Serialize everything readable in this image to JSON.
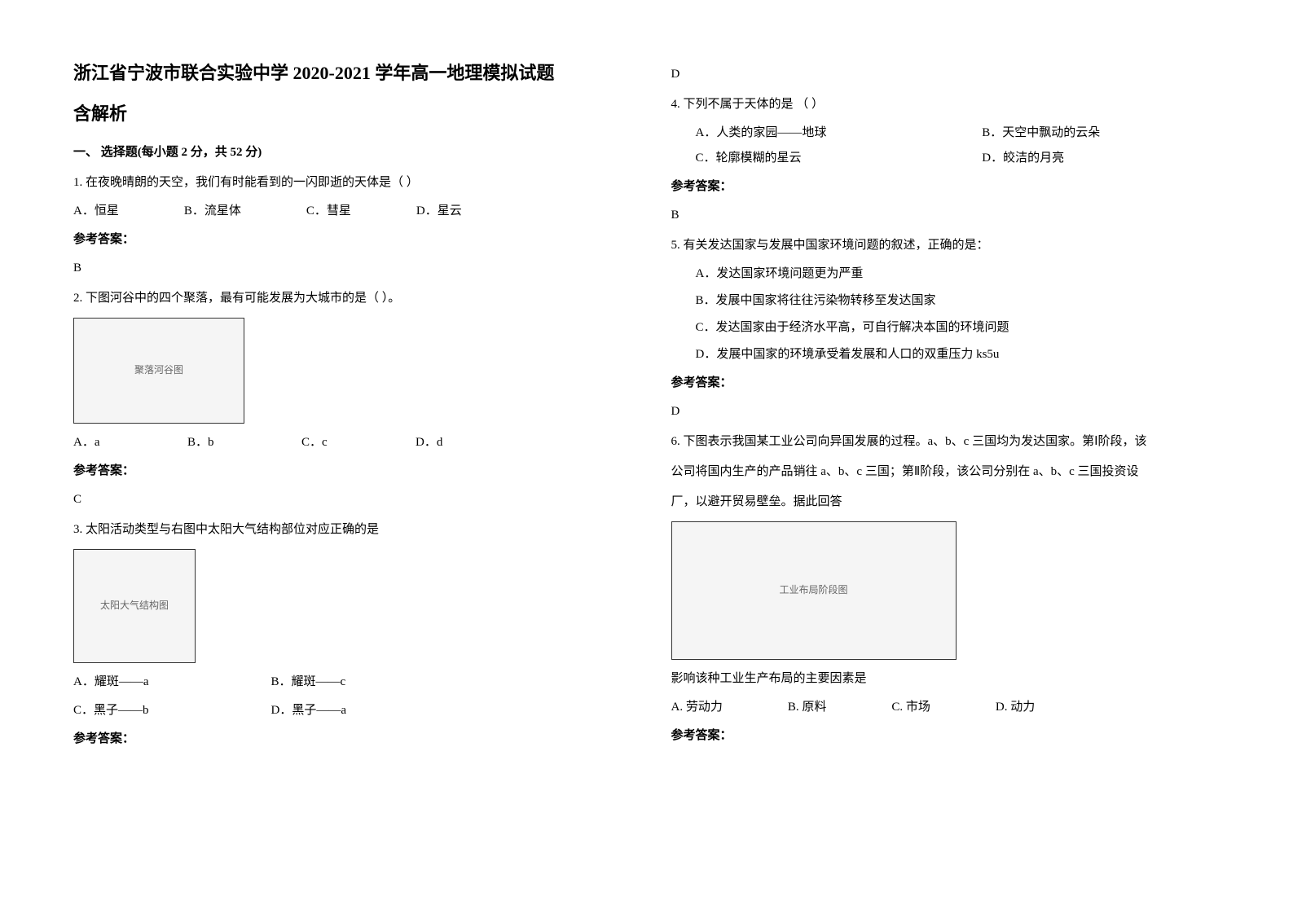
{
  "header": {
    "title_line1": "浙江省宁波市联合实验中学 2020-2021 学年高一地理模拟试题",
    "title_line2": "含解析"
  },
  "section1": {
    "header": "一、 选择题(每小题 2 分，共 52 分)"
  },
  "q1": {
    "text": "1. 在夜晚晴朗的天空，我们有时能看到的一闪即逝的天体是（  ）",
    "optA": "A．恒星",
    "optB": "B．流星体",
    "optC": "C．彗星",
    "optD": "D．星云",
    "answer_label": "参考答案：",
    "answer": "B"
  },
  "q2": {
    "text": "2. 下图河谷中的四个聚落，最有可能发展为大城市的是（  ）。",
    "optA": "A．a",
    "optB": "B．b",
    "optC": "C．c",
    "optD": "D．d",
    "answer_label": "参考答案：",
    "answer": "C",
    "image_placeholder": "聚落河谷图"
  },
  "q3": {
    "text": "3. 太阳活动类型与右图中太阳大气结构部位对应正确的是",
    "optA": "A．耀斑——a",
    "optB": "B．耀斑——c",
    "optC": "C．黑子——b",
    "optD": "D．黑子——a",
    "answer_label": "参考答案：",
    "answer": "D",
    "image_placeholder": "太阳大气结构图"
  },
  "q4": {
    "text": "4. 下列不属于天体的是  （     ）",
    "optA": "A．人类的家园——地球",
    "optB": "B．天空中飘动的云朵",
    "optC": "C．轮廓模糊的星云",
    "optD": "D．皎洁的月亮",
    "answer_label": "参考答案：",
    "answer": "B"
  },
  "q5": {
    "text": "5. 有关发达国家与发展中国家环境问题的叙述，正确的是：",
    "optA": "A．发达国家环境问题更为严重",
    "optB": "B．发展中国家将往往污染物转移至发达国家",
    "optC": "C．发达国家由于经济水平高，可自行解决本国的环境问题",
    "optD": "D．发展中国家的环境承受着发展和人口的双重压力 ks5u",
    "answer_label": "参考答案：",
    "answer": "D"
  },
  "q6": {
    "text1": "6. 下图表示我国某工业公司向异国发展的过程。a、b、c 三国均为发达国家。第Ⅰ阶段，该",
    "text2": "公司将国内生产的产品销往 a、b、c 三国；第Ⅱ阶段，该公司分别在 a、b、c 三国投资设",
    "text3": "厂，以避开贸易壁垒。据此回答",
    "image_placeholder": "工业布局阶段图",
    "subq": "影响该种工业生产布局的主要因素是",
    "optA": "A. 劳动力",
    "optB": "B. 原料",
    "optC": "C. 市场",
    "optD": "D. 动力",
    "answer_label": "参考答案："
  }
}
